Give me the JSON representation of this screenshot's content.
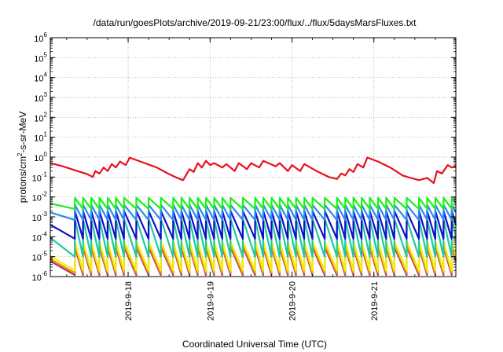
{
  "chart_data": {
    "type": "line",
    "title": "/data/run/goesPlots/archive/2019-09-21/23:00/flux/../flux/5daysMarsFluxes.txt",
    "xlabel": "Coordinated Universal Time (UTC)",
    "ylabel": "protons/cm²-s-sr-MeV",
    "ylabel_parts": {
      "pre": "protons/cm",
      "sup": "2",
      "post": "-s-sr-MeV"
    },
    "yscale": "log",
    "ylim_exp": [
      -6,
      6
    ],
    "y_tick_base": "10",
    "y_tick_exponents": [
      -6,
      -5,
      -4,
      -3,
      -2,
      -1,
      0,
      1,
      2,
      3,
      4,
      5,
      6
    ],
    "xlim_days": [
      0.0,
      4.95
    ],
    "x_ticks": [
      {
        "day": 0.95,
        "label": "2019-9-18"
      },
      {
        "day": 1.95,
        "label": "2019-9-19"
      },
      {
        "day": 2.95,
        "label": "2019-9-20"
      },
      {
        "day": 3.95,
        "label": "2019-9-21"
      }
    ],
    "grid": true,
    "sawtooth": {
      "teeth_days": [
        0.3,
        0.4,
        0.5,
        0.6,
        0.7,
        0.8,
        0.9,
        1.05,
        1.2,
        1.35,
        1.5,
        1.6,
        1.7,
        1.8,
        1.9,
        2.0,
        2.1,
        2.2,
        2.35,
        2.5,
        2.6,
        2.7,
        2.8,
        2.9,
        3.0,
        3.1,
        3.2,
        3.35,
        3.5,
        3.6,
        3.7,
        3.8,
        3.9,
        4.0,
        4.1,
        4.2,
        4.35,
        4.5,
        4.6,
        4.7,
        4.8,
        4.9
      ]
    },
    "series": [
      {
        "color": "#e8101e",
        "kind": "main",
        "points": [
          [
            0.0,
            0.5
          ],
          [
            0.15,
            0.35
          ],
          [
            0.3,
            0.22
          ],
          [
            0.45,
            0.14
          ],
          [
            0.52,
            0.1
          ],
          [
            0.55,
            0.2
          ],
          [
            0.6,
            0.15
          ],
          [
            0.65,
            0.3
          ],
          [
            0.7,
            0.2
          ],
          [
            0.75,
            0.45
          ],
          [
            0.8,
            0.3
          ],
          [
            0.85,
            0.6
          ],
          [
            0.92,
            0.4
          ],
          [
            0.97,
            0.95
          ],
          [
            1.1,
            0.6
          ],
          [
            1.3,
            0.3
          ],
          [
            1.45,
            0.14
          ],
          [
            1.55,
            0.09
          ],
          [
            1.62,
            0.07
          ],
          [
            1.7,
            0.25
          ],
          [
            1.75,
            0.18
          ],
          [
            1.8,
            0.5
          ],
          [
            1.85,
            0.3
          ],
          [
            1.9,
            0.65
          ],
          [
            1.95,
            0.4
          ],
          [
            2.0,
            0.5
          ],
          [
            2.1,
            0.3
          ],
          [
            2.15,
            0.45
          ],
          [
            2.25,
            0.2
          ],
          [
            2.3,
            0.5
          ],
          [
            2.4,
            0.25
          ],
          [
            2.45,
            0.5
          ],
          [
            2.55,
            0.3
          ],
          [
            2.6,
            0.65
          ],
          [
            2.75,
            0.35
          ],
          [
            2.8,
            0.5
          ],
          [
            2.9,
            0.2
          ],
          [
            2.95,
            0.4
          ],
          [
            3.05,
            0.2
          ],
          [
            3.1,
            0.45
          ],
          [
            3.25,
            0.2
          ],
          [
            3.4,
            0.1
          ],
          [
            3.5,
            0.08
          ],
          [
            3.55,
            0.15
          ],
          [
            3.6,
            0.12
          ],
          [
            3.65,
            0.25
          ],
          [
            3.7,
            0.18
          ],
          [
            3.75,
            0.45
          ],
          [
            3.82,
            0.3
          ],
          [
            3.87,
            0.95
          ],
          [
            4.0,
            0.6
          ],
          [
            4.15,
            0.3
          ],
          [
            4.3,
            0.12
          ],
          [
            4.4,
            0.09
          ],
          [
            4.5,
            0.07
          ],
          [
            4.6,
            0.09
          ],
          [
            4.68,
            0.05
          ],
          [
            4.72,
            0.2
          ],
          [
            4.78,
            0.15
          ],
          [
            4.85,
            0.4
          ],
          [
            4.9,
            0.3
          ],
          [
            4.95,
            0.35
          ]
        ]
      },
      {
        "color": "#19f019",
        "kind": "saw",
        "high": 0.009,
        "low": 0.0025
      },
      {
        "color": "#2a8cf0",
        "kind": "saw",
        "high": 0.004,
        "low": 0.0007
      },
      {
        "color": "#1010c8",
        "kind": "saw",
        "high": 0.002,
        "low": 8e-05
      },
      {
        "color": "#20c8a0",
        "kind": "saw",
        "high": 0.0008,
        "low": 1e-05
      },
      {
        "color": "#f0f010",
        "kind": "saw",
        "high": 6e-05,
        "low": 2e-06
      },
      {
        "color": "#ff9000",
        "kind": "saw",
        "high": 4e-05,
        "low": 1.5e-06
      },
      {
        "color": "#a03c78",
        "kind": "saw",
        "high": 3e-05,
        "low": 1.2e-06
      }
    ]
  }
}
